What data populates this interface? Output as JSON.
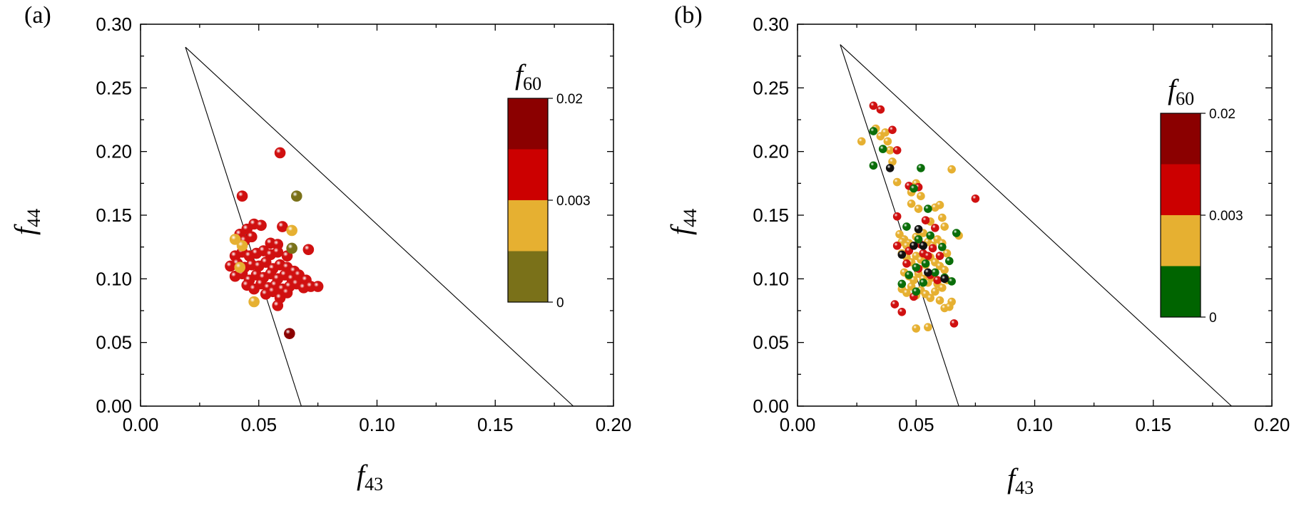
{
  "chart_data": [
    {
      "type": "scatter",
      "panel_label": "(a)",
      "xlabel": {
        "main": "f",
        "sub": "43"
      },
      "ylabel": {
        "main": "f",
        "sub": "44"
      },
      "xlim": [
        0.0,
        0.2
      ],
      "ylim": [
        0.0,
        0.3
      ],
      "x_ticks": [
        "0.00",
        "0.05",
        "0.10",
        "0.15",
        "0.20"
      ],
      "y_ticks": [
        "0.00",
        "0.05",
        "0.10",
        "0.15",
        "0.20",
        "0.25",
        "0.30"
      ],
      "reference_lines": [
        {
          "from": [
            0.019,
            0.282
          ],
          "to": [
            0.068,
            0.0
          ]
        },
        {
          "from": [
            0.019,
            0.282
          ],
          "to": [
            0.183,
            0.0
          ]
        }
      ],
      "colorbar": {
        "title": {
          "main": "f",
          "sub": "60"
        },
        "tick_labels": [
          "0.02",
          "0.003",
          "0"
        ],
        "bands": [
          "#8b0000",
          "#cc0000",
          "#e6b031",
          "#7a7119"
        ]
      },
      "series": [
        {
          "color": "#d01010",
          "points": [
            [
              0.043,
              0.165
            ],
            [
              0.059,
              0.199
            ],
            [
              0.045,
              0.139
            ],
            [
              0.048,
              0.143
            ],
            [
              0.051,
              0.142
            ],
            [
              0.06,
              0.141
            ],
            [
              0.042,
              0.135
            ],
            [
              0.044,
              0.13
            ],
            [
              0.047,
              0.133
            ],
            [
              0.055,
              0.128
            ],
            [
              0.058,
              0.127
            ],
            [
              0.071,
              0.123
            ],
            [
              0.04,
              0.118
            ],
            [
              0.043,
              0.121
            ],
            [
              0.046,
              0.118
            ],
            [
              0.049,
              0.12
            ],
            [
              0.052,
              0.122
            ],
            [
              0.055,
              0.119
            ],
            [
              0.058,
              0.121
            ],
            [
              0.062,
              0.118
            ],
            [
              0.038,
              0.11
            ],
            [
              0.041,
              0.112
            ],
            [
              0.044,
              0.109
            ],
            [
              0.047,
              0.111
            ],
            [
              0.05,
              0.11
            ],
            [
              0.053,
              0.113
            ],
            [
              0.056,
              0.108
            ],
            [
              0.059,
              0.111
            ],
            [
              0.062,
              0.109
            ],
            [
              0.065,
              0.106
            ],
            [
              0.04,
              0.102
            ],
            [
              0.043,
              0.104
            ],
            [
              0.046,
              0.099
            ],
            [
              0.049,
              0.103
            ],
            [
              0.052,
              0.101
            ],
            [
              0.055,
              0.104
            ],
            [
              0.058,
              0.1
            ],
            [
              0.061,
              0.103
            ],
            [
              0.064,
              0.1
            ],
            [
              0.067,
              0.103
            ],
            [
              0.07,
              0.099
            ],
            [
              0.045,
              0.095
            ],
            [
              0.048,
              0.092
            ],
            [
              0.051,
              0.096
            ],
            [
              0.054,
              0.093
            ],
            [
              0.057,
              0.095
            ],
            [
              0.06,
              0.092
            ],
            [
              0.063,
              0.094
            ],
            [
              0.066,
              0.096
            ],
            [
              0.069,
              0.093
            ],
            [
              0.072,
              0.094
            ],
            [
              0.075,
              0.094
            ],
            [
              0.053,
              0.088
            ],
            [
              0.056,
              0.09
            ],
            [
              0.059,
              0.085
            ],
            [
              0.062,
              0.089
            ],
            [
              0.058,
              0.079
            ]
          ]
        },
        {
          "color": "#e6b031",
          "points": [
            [
              0.043,
              0.126
            ],
            [
              0.04,
              0.131
            ],
            [
              0.042,
              0.109
            ],
            [
              0.048,
              0.082
            ],
            [
              0.064,
              0.138
            ]
          ]
        },
        {
          "color": "#7a7119",
          "points": [
            [
              0.066,
              0.165
            ],
            [
              0.064,
              0.124
            ]
          ]
        },
        {
          "color": "#8b0000",
          "points": [
            [
              0.063,
              0.057
            ]
          ]
        }
      ]
    },
    {
      "type": "scatter",
      "panel_label": "(b)",
      "xlabel": {
        "main": "f",
        "sub": "43"
      },
      "ylabel": {
        "main": "f",
        "sub": "44"
      },
      "xlim": [
        0.0,
        0.2
      ],
      "ylim": [
        0.0,
        0.3
      ],
      "x_ticks": [
        "0.00",
        "0.05",
        "0.10",
        "0.15",
        "0.20"
      ],
      "y_ticks": [
        "0.00",
        "0.05",
        "0.10",
        "0.15",
        "0.20",
        "0.25",
        "0.30"
      ],
      "reference_lines": [
        {
          "from": [
            0.018,
            0.284
          ],
          "to": [
            0.068,
            0.0
          ]
        },
        {
          "from": [
            0.018,
            0.284
          ],
          "to": [
            0.183,
            0.0
          ]
        }
      ],
      "colorbar": {
        "title": {
          "main": "f",
          "sub": "60"
        },
        "tick_labels": [
          "0.02",
          "0.003",
          "0"
        ],
        "bands": [
          "#8b0000",
          "#cc0000",
          "#e6b031",
          "#006400"
        ]
      },
      "series": [
        {
          "color": "#e6b031",
          "points": [
            [
              0.027,
              0.208
            ],
            [
              0.033,
              0.218
            ],
            [
              0.035,
              0.212
            ],
            [
              0.037,
              0.215
            ],
            [
              0.038,
              0.208
            ],
            [
              0.039,
              0.201
            ],
            [
              0.04,
              0.192
            ],
            [
              0.042,
              0.176
            ],
            [
              0.048,
              0.168
            ],
            [
              0.05,
              0.175
            ],
            [
              0.052,
              0.165
            ],
            [
              0.048,
              0.159
            ],
            [
              0.051,
              0.155
            ],
            [
              0.056,
              0.145
            ],
            [
              0.058,
              0.156
            ],
            [
              0.06,
              0.158
            ],
            [
              0.061,
              0.148
            ],
            [
              0.065,
              0.186
            ],
            [
              0.068,
              0.134
            ],
            [
              0.062,
              0.141
            ],
            [
              0.043,
              0.135
            ],
            [
              0.045,
              0.131
            ],
            [
              0.047,
              0.128
            ],
            [
              0.05,
              0.133
            ],
            [
              0.053,
              0.136
            ],
            [
              0.055,
              0.129
            ],
            [
              0.057,
              0.126
            ],
            [
              0.059,
              0.131
            ],
            [
              0.061,
              0.128
            ],
            [
              0.063,
              0.12
            ],
            [
              0.044,
              0.12
            ],
            [
              0.046,
              0.117
            ],
            [
              0.048,
              0.113
            ],
            [
              0.05,
              0.118
            ],
            [
              0.052,
              0.115
            ],
            [
              0.054,
              0.111
            ],
            [
              0.056,
              0.117
            ],
            [
              0.058,
              0.113
            ],
            [
              0.06,
              0.11
            ],
            [
              0.062,
              0.107
            ],
            [
              0.045,
              0.105
            ],
            [
              0.047,
              0.102
            ],
            [
              0.049,
              0.099
            ],
            [
              0.051,
              0.104
            ],
            [
              0.053,
              0.1
            ],
            [
              0.055,
              0.097
            ],
            [
              0.057,
              0.101
            ],
            [
              0.059,
              0.096
            ],
            [
              0.061,
              0.093
            ],
            [
              0.063,
              0.099
            ],
            [
              0.044,
              0.092
            ],
            [
              0.046,
              0.089
            ],
            [
              0.048,
              0.094
            ],
            [
              0.05,
              0.087
            ],
            [
              0.052,
              0.091
            ],
            [
              0.054,
              0.088
            ],
            [
              0.056,
              0.085
            ],
            [
              0.058,
              0.09
            ],
            [
              0.06,
              0.083
            ],
            [
              0.065,
              0.082
            ],
            [
              0.062,
              0.077
            ],
            [
              0.064,
              0.078
            ],
            [
              0.05,
              0.061
            ],
            [
              0.055,
              0.062
            ],
            [
              0.044,
              0.129
            ],
            [
              0.046,
              0.126
            ]
          ]
        },
        {
          "color": "#d01010",
          "points": [
            [
              0.032,
              0.236
            ],
            [
              0.035,
              0.233
            ],
            [
              0.04,
              0.217
            ],
            [
              0.042,
              0.201
            ],
            [
              0.075,
              0.163
            ],
            [
              0.047,
              0.173
            ],
            [
              0.051,
              0.172
            ],
            [
              0.042,
              0.149
            ],
            [
              0.054,
              0.146
            ],
            [
              0.058,
              0.14
            ],
            [
              0.042,
              0.126
            ],
            [
              0.047,
              0.122
            ],
            [
              0.053,
              0.12
            ],
            [
              0.057,
              0.124
            ],
            [
              0.06,
              0.118
            ],
            [
              0.046,
              0.112
            ],
            [
              0.051,
              0.108
            ],
            [
              0.056,
              0.103
            ],
            [
              0.059,
              0.099
            ],
            [
              0.049,
              0.086
            ],
            [
              0.041,
              0.08
            ],
            [
              0.044,
              0.074
            ],
            [
              0.066,
              0.065
            ],
            [
              0.052,
              0.127
            ],
            [
              0.055,
              0.118
            ]
          ]
        },
        {
          "color": "#0a6e0a",
          "points": [
            [
              0.032,
              0.216
            ],
            [
              0.036,
              0.202
            ],
            [
              0.032,
              0.189
            ],
            [
              0.052,
              0.187
            ],
            [
              0.049,
              0.171
            ],
            [
              0.055,
              0.155
            ],
            [
              0.046,
              0.141
            ],
            [
              0.051,
              0.131
            ],
            [
              0.056,
              0.134
            ],
            [
              0.061,
              0.125
            ],
            [
              0.064,
              0.114
            ],
            [
              0.05,
              0.109
            ],
            [
              0.047,
              0.103
            ],
            [
              0.053,
              0.097
            ],
            [
              0.058,
              0.105
            ],
            [
              0.062,
              0.101
            ],
            [
              0.044,
              0.096
            ],
            [
              0.05,
              0.09
            ],
            [
              0.065,
              0.098
            ],
            [
              0.067,
              0.136
            ],
            [
              0.054,
              0.112
            ]
          ]
        },
        {
          "color": "#111111",
          "points": [
            [
              0.039,
              0.187
            ],
            [
              0.051,
              0.139
            ],
            [
              0.053,
              0.126
            ],
            [
              0.044,
              0.119
            ],
            [
              0.055,
              0.105
            ],
            [
              0.062,
              0.1
            ],
            [
              0.049,
              0.126
            ]
          ]
        }
      ]
    }
  ]
}
